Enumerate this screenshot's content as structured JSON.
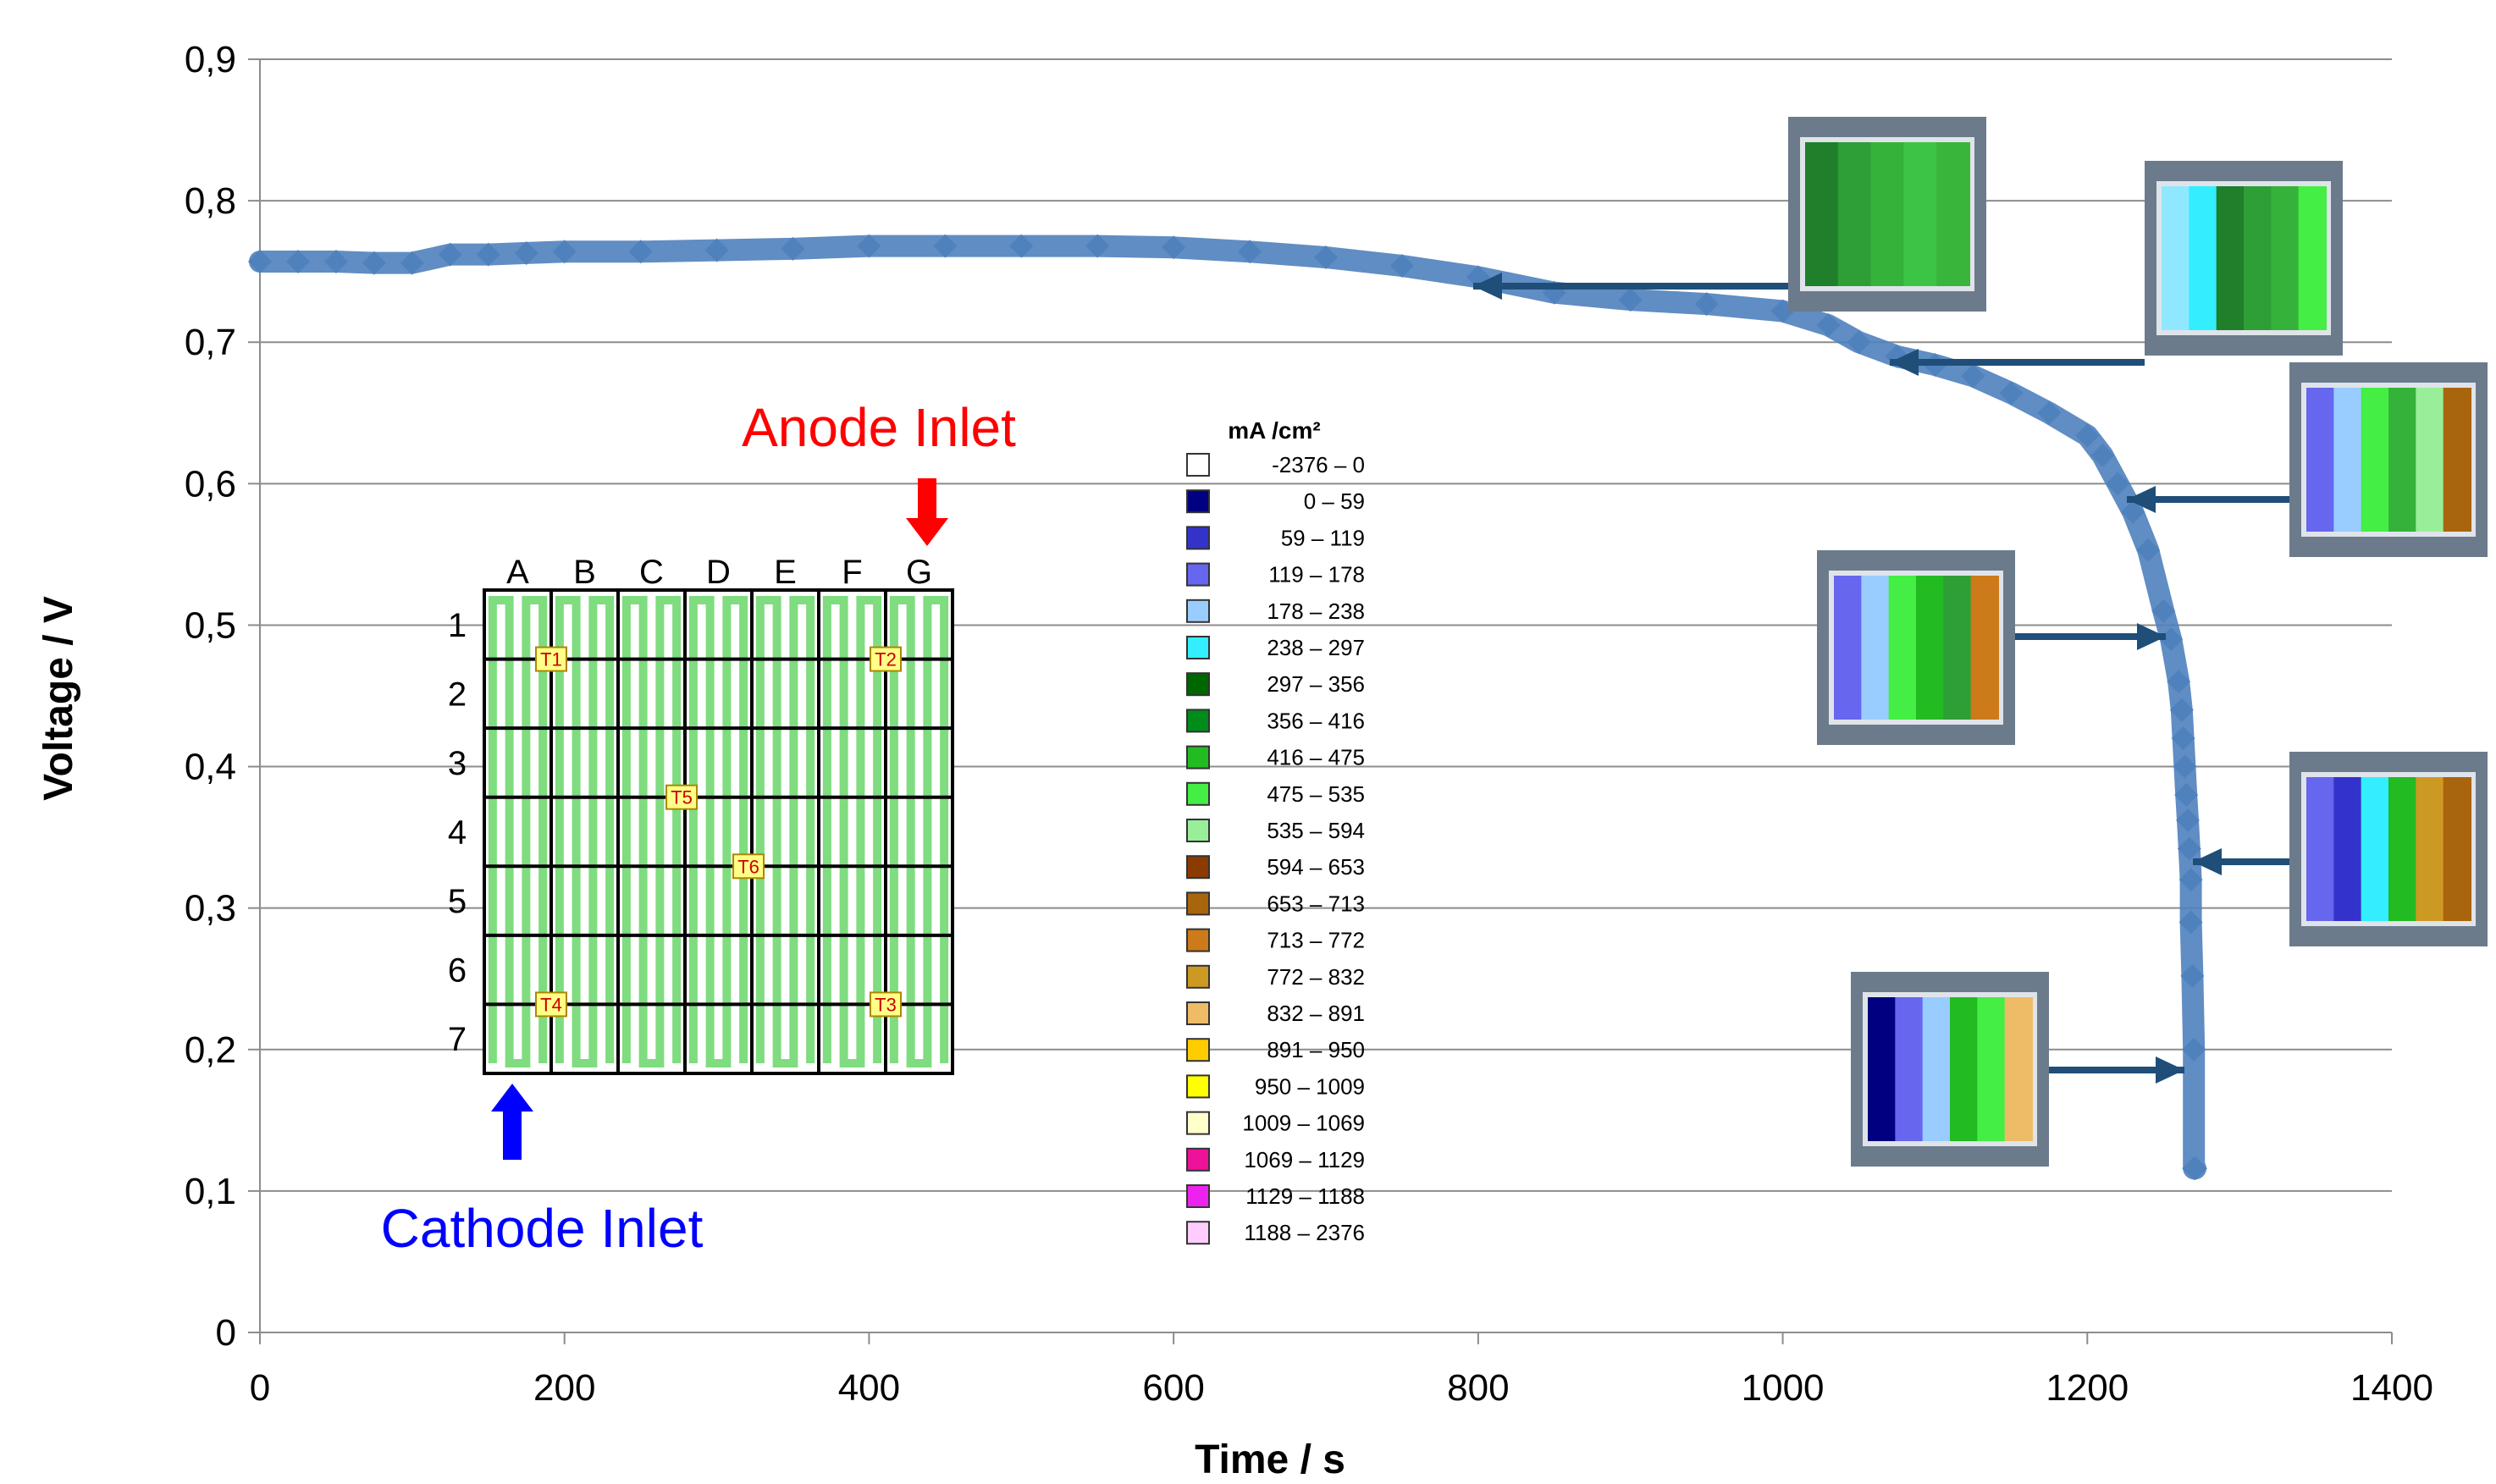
{
  "chart_data": {
    "type": "scatter",
    "xlabel": "Time / s",
    "ylabel": "Voltage / V",
    "xlim": [
      0,
      1400
    ],
    "ylim": [
      0,
      0.9
    ],
    "x_ticks": [
      "0",
      "200",
      "400",
      "600",
      "800",
      "1000",
      "1200",
      "1400"
    ],
    "y_ticks": [
      "0",
      "0,1",
      "0,2",
      "0,3",
      "0,4",
      "0,5",
      "0,6",
      "0,7",
      "0,8",
      "0,9"
    ],
    "grid": "horizontal",
    "color": "#4f81bd",
    "series": [
      {
        "x": [
          0,
          25,
          50,
          75,
          100,
          125,
          150,
          175,
          200,
          250,
          300,
          350,
          400,
          450,
          500,
          550,
          600,
          650,
          700,
          750,
          800,
          850,
          900,
          950,
          1000,
          1030,
          1050,
          1075,
          1100,
          1125,
          1150,
          1175,
          1200,
          1210,
          1220,
          1230,
          1240,
          1250,
          1255,
          1260,
          1262,
          1263,
          1264,
          1265,
          1266,
          1267,
          1268,
          1268,
          1269,
          1270,
          1270,
          1271
        ],
        "y": [
          0.757,
          0.757,
          0.757,
          0.756,
          0.756,
          0.762,
          0.762,
          0.763,
          0.764,
          0.764,
          0.765,
          0.766,
          0.768,
          0.768,
          0.768,
          0.768,
          0.767,
          0.764,
          0.76,
          0.754,
          0.746,
          0.735,
          0.73,
          0.727,
          0.722,
          0.712,
          0.7,
          0.69,
          0.684,
          0.676,
          0.664,
          0.65,
          0.634,
          0.62,
          0.6,
          0.58,
          0.553,
          0.51,
          0.49,
          0.46,
          0.44,
          0.42,
          0.4,
          0.38,
          0.362,
          0.342,
          0.32,
          0.29,
          0.252,
          0.2,
          0.116,
          0.116
        ]
      }
    ],
    "annotations": {
      "anode_inlet": "Anode Inlet",
      "cathode_inlet": "Cathode Inlet",
      "columns": [
        "A",
        "B",
        "C",
        "D",
        "E",
        "F",
        "G"
      ],
      "rows": [
        "1",
        "2",
        "3",
        "4",
        "5",
        "6",
        "7"
      ],
      "sensors": [
        "T1",
        "T2",
        "T3",
        "T4",
        "T5",
        "T6"
      ]
    },
    "legend": {
      "title": "mA /cm²",
      "items": [
        {
          "range": "-2376 –     0",
          "color": "#ffffff"
        },
        {
          "range": "0 –   59",
          "color": "#000080"
        },
        {
          "range": "59 –  119",
          "color": "#3333cc"
        },
        {
          "range": "119 –  178",
          "color": "#6666ee"
        },
        {
          "range": "178 –  238",
          "color": "#99ccff"
        },
        {
          "range": "238 –  297",
          "color": "#33eeff"
        },
        {
          "range": "297 –  356",
          "color": "#006600"
        },
        {
          "range": "356 –  416",
          "color": "#008c1a"
        },
        {
          "range": "416 –  475",
          "color": "#22bb22"
        },
        {
          "range": "475 –  535",
          "color": "#44ee44"
        },
        {
          "range": "535 –  594",
          "color": "#99ee99"
        },
        {
          "range": "594 –  653",
          "color": "#8b3a00"
        },
        {
          "range": "653 –  713",
          "color": "#a8650d"
        },
        {
          "range": "713 –  772",
          "color": "#cc7a1a"
        },
        {
          "range": "772 –  832",
          "color": "#cc9922"
        },
        {
          "range": "832 –  891",
          "color": "#eebb66"
        },
        {
          "range": "891 –  950",
          "color": "#ffcc00"
        },
        {
          "range": "950 – 1009",
          "color": "#ffff00"
        },
        {
          "range": "1009 – 1069",
          "color": "#ffffcc"
        },
        {
          "range": "1069 – 1129",
          "color": "#ee1199"
        },
        {
          "range": "1129 – 1188",
          "color": "#ee22ee"
        },
        {
          "range": "1188 – 2376",
          "color": "#ffccff"
        }
      ]
    }
  }
}
